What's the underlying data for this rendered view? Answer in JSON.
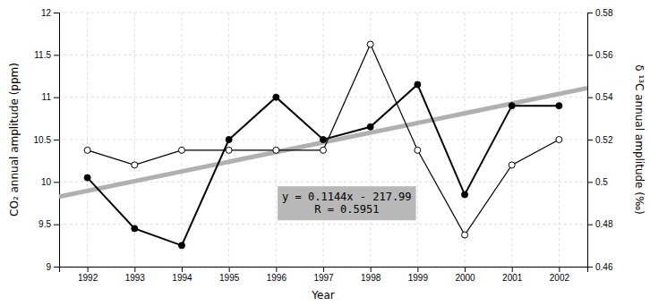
{
  "chart_data": {
    "type": "line",
    "x": [
      1992,
      1993,
      1994,
      1995,
      1996,
      1997,
      1998,
      1999,
      2000,
      2001,
      2002
    ],
    "series": [
      {
        "x": [
          1991.4,
          2002.6
        ],
        "values": [
          9.82616,
          11.10744
        ],
        "color": "#b0b0b0",
        "marker": "none",
        "line_style": "solid",
        "axis": "y"
      },
      {
        "values": [
          10.05,
          9.45,
          9.25,
          10.5,
          11.0,
          10.5,
          10.65,
          11.15,
          9.85,
          10.9,
          10.9
        ],
        "color": "#000000",
        "marker": "filled-circle",
        "line_style": "solid",
        "axis": "y"
      },
      {
        "values": [
          0.515,
          0.508,
          0.515,
          0.515,
          0.515,
          0.515,
          0.565,
          0.515,
          0.475,
          0.508,
          0.52
        ],
        "color": "#000000",
        "marker": "open-circle",
        "line_style": "solid",
        "axis": "y2"
      }
    ],
    "x_label": "Year",
    "y_label": "CO₂ annual amplitude (ppm)",
    "y2_label": "δ ¹³C annual amplitude (‰)",
    "xlim": [
      1991.4,
      2002.6
    ],
    "xticks": [
      1992,
      1993,
      1994,
      1995,
      1996,
      1997,
      1998,
      1999,
      2000,
      2001,
      2002
    ],
    "ylim": [
      9.0,
      12.0
    ],
    "yticks": [
      9,
      9.5,
      10,
      10.5,
      11,
      11.5,
      12
    ],
    "y2lim": [
      0.46,
      0.58
    ],
    "y2ticks": [
      0.46,
      0.48,
      0.5,
      0.52,
      0.54,
      0.56,
      0.58
    ],
    "grid": true,
    "annotations": [
      {
        "lines": [
          "y = 0.1144x - 217.99",
          "R = 0.5951"
        ],
        "x": 1997.5,
        "y": 9.75,
        "color": "#b8b8b8"
      }
    ]
  }
}
